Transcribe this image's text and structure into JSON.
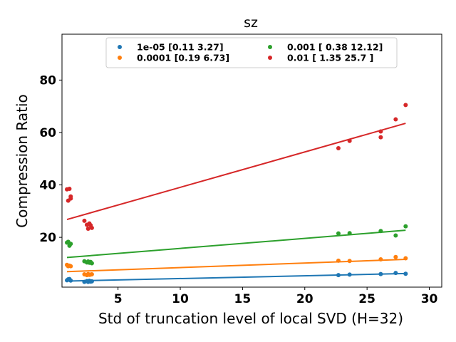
{
  "chart_data": {
    "type": "scatter",
    "title": "sz",
    "xlabel": "Std of truncation level of local SVD (H=32)",
    "ylabel": "Compression Ratio",
    "xlim": [
      0.5,
      31.0
    ],
    "ylim": [
      1.0,
      97.5
    ],
    "xticks": [
      5,
      10,
      15,
      20,
      25,
      30
    ],
    "yticks": [
      20,
      40,
      60,
      80
    ],
    "grid": false,
    "legend_position": "top-center",
    "legend_columns": 2,
    "series": [
      {
        "name": "1e-05 [0.11 3.27]",
        "color": "#1f77b4",
        "fit": [
          [
            0.9,
            3.3
          ],
          [
            28.1,
            6.2
          ]
        ],
        "points": [
          [
            0.9,
            3.6
          ],
          [
            1.0,
            4.0
          ],
          [
            1.1,
            4.1
          ],
          [
            1.2,
            3.5
          ],
          [
            2.3,
            3.0
          ],
          [
            2.5,
            3.3
          ],
          [
            2.6,
            3.0
          ],
          [
            2.7,
            3.4
          ],
          [
            2.8,
            3.1
          ],
          [
            2.9,
            3.2
          ],
          [
            22.7,
            5.6
          ],
          [
            23.6,
            5.8
          ],
          [
            26.1,
            6.0
          ],
          [
            27.3,
            6.4
          ],
          [
            28.1,
            6.1
          ]
        ]
      },
      {
        "name": "0.0001 [0.19 6.73]",
        "color": "#ff7f0e",
        "fit": [
          [
            0.9,
            6.9
          ],
          [
            28.1,
            11.6
          ]
        ],
        "points": [
          [
            0.9,
            9.5
          ],
          [
            1.0,
            9.0
          ],
          [
            1.1,
            9.2
          ],
          [
            1.2,
            9.0
          ],
          [
            2.3,
            5.9
          ],
          [
            2.5,
            5.6
          ],
          [
            2.6,
            6.0
          ],
          [
            2.7,
            5.7
          ],
          [
            2.8,
            5.8
          ],
          [
            2.9,
            5.9
          ],
          [
            22.7,
            11.1
          ],
          [
            23.6,
            11.0
          ],
          [
            26.1,
            11.6
          ],
          [
            27.3,
            12.5
          ],
          [
            28.1,
            12.0
          ]
        ]
      },
      {
        "name": "0.001 [ 0.38 12.12]",
        "color": "#2ca02c",
        "fit": [
          [
            0.9,
            12.3
          ],
          [
            28.1,
            22.7
          ]
        ],
        "points": [
          [
            0.9,
            18.0
          ],
          [
            1.0,
            18.3
          ],
          [
            1.1,
            16.8
          ],
          [
            1.2,
            17.5
          ],
          [
            2.3,
            10.9
          ],
          [
            2.5,
            10.4
          ],
          [
            2.6,
            10.8
          ],
          [
            2.7,
            10.3
          ],
          [
            2.8,
            10.6
          ],
          [
            2.9,
            10.1
          ],
          [
            22.7,
            21.5
          ],
          [
            23.6,
            21.6
          ],
          [
            26.1,
            22.4
          ],
          [
            27.3,
            20.7
          ],
          [
            28.1,
            24.2
          ]
        ]
      },
      {
        "name": "0.01 [ 1.35 25.7 ]",
        "color": "#d62728",
        "fit": [
          [
            0.9,
            26.8
          ],
          [
            28.1,
            63.5
          ]
        ],
        "points": [
          [
            0.9,
            38.3
          ],
          [
            1.0,
            34.0
          ],
          [
            1.1,
            38.5
          ],
          [
            1.2,
            35.6
          ],
          [
            1.2,
            34.8
          ],
          [
            2.3,
            26.3
          ],
          [
            2.5,
            24.8
          ],
          [
            2.6,
            23.3
          ],
          [
            2.7,
            25.3
          ],
          [
            2.8,
            24.6
          ],
          [
            2.9,
            23.6
          ],
          [
            22.7,
            54.0
          ],
          [
            23.6,
            56.8
          ],
          [
            26.1,
            58.2
          ],
          [
            26.1,
            60.4
          ],
          [
            27.3,
            65.0
          ],
          [
            28.1,
            70.5
          ]
        ]
      }
    ]
  }
}
